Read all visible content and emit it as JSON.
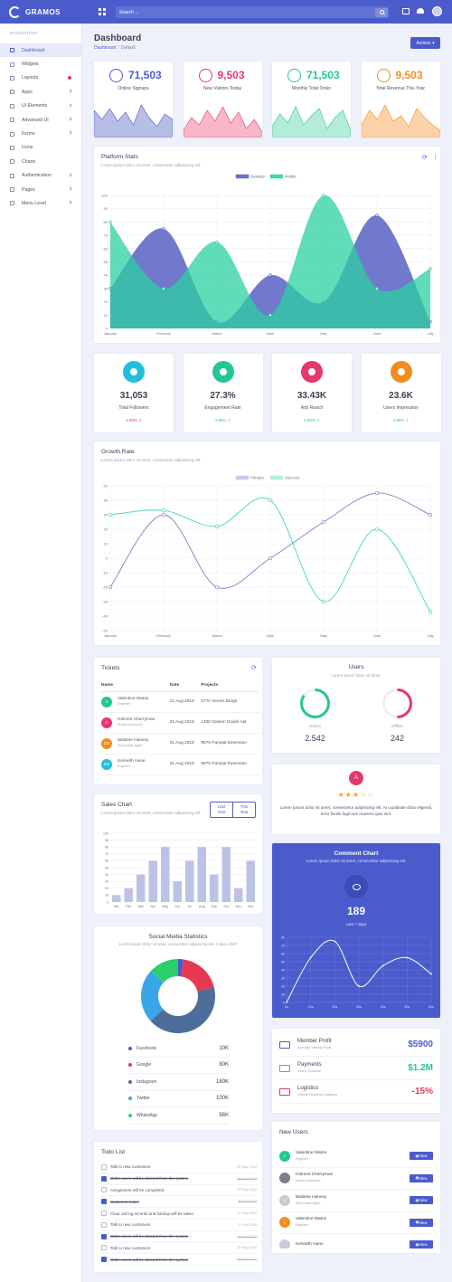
{
  "brand": "GRAMOS",
  "search": {
    "placeholder": "Search ..."
  },
  "sidebar": {
    "title": "NAVIGATION",
    "items": [
      {
        "label": "Dashboard",
        "active": true,
        "suffix": ""
      },
      {
        "label": "Widgets",
        "suffix": ""
      },
      {
        "label": "Layouts",
        "suffix": "dot"
      },
      {
        "label": "Apps",
        "suffix": "chevron"
      },
      {
        "label": "UI Elements",
        "suffix": "chevron"
      },
      {
        "label": "Advanced UI",
        "suffix": "chevron"
      },
      {
        "label": "Forms",
        "suffix": "chevron"
      },
      {
        "label": "Icons",
        "suffix": ""
      },
      {
        "label": "Charts",
        "suffix": ""
      },
      {
        "label": "Authentication",
        "suffix": "chevron"
      },
      {
        "label": "Pages",
        "suffix": "chevron"
      },
      {
        "label": "Menu Level",
        "suffix": "chevron"
      }
    ]
  },
  "page": {
    "title": "Dashboard",
    "crumb_root": "Dashboard",
    "crumb_sep": "/",
    "crumb_current": "Default",
    "actions_label": "Actions ▾"
  },
  "stats": [
    {
      "value": "71,503",
      "label": "Online Signups",
      "color": "#4a5ccb",
      "fill": "#b6bde6",
      "spark": [
        30,
        20,
        32,
        18,
        28,
        14,
        36,
        22,
        12,
        26,
        20
      ]
    },
    {
      "value": "9,503",
      "label": "New Visitors Today",
      "color": "#e5396b",
      "fill": "#f8b7c8",
      "spark": [
        8,
        22,
        14,
        30,
        18,
        34,
        16,
        28,
        10,
        20,
        6
      ]
    },
    {
      "value": "71,503",
      "label": "Monthly Total Order",
      "color": "#23c795",
      "fill": "#b3ecd9",
      "spark": [
        12,
        26,
        16,
        34,
        14,
        24,
        32,
        10,
        22,
        30,
        8
      ]
    },
    {
      "value": "9,503",
      "label": "Total Revenue This Year",
      "color": "#f38c1e",
      "fill": "#fcd3a8",
      "spark": [
        14,
        30,
        20,
        36,
        18,
        24,
        12,
        32,
        22,
        14,
        8
      ]
    }
  ],
  "platform": {
    "title": "Platform Stats",
    "subtitle": "Lorem ipsum dolor sit amet, consectetur adipisicing elit."
  },
  "kpis": [
    {
      "value": "31,053",
      "label": "Total Followers",
      "change": "4.98% ⇩",
      "color": "#1fc0db",
      "change_color": "#e5394f"
    },
    {
      "value": "27.3%",
      "label": "Engagement Rate",
      "change": "4.98% ⇧",
      "color": "#23c795",
      "change_color": "#23c795"
    },
    {
      "value": "33.43K",
      "label": "Ads Reach",
      "change": "4.98% ⇧",
      "color": "#e5396b",
      "change_color": "#23c795"
    },
    {
      "value": "23.6K",
      "label": "Users Impression",
      "change": "4.98% ⇧",
      "color": "#f38c1e",
      "change_color": "#23c795"
    }
  ],
  "growth": {
    "title": "Growth Rate",
    "subtitle": "Lorem ipsum dolor sit amet, consectetur adipisicing elit."
  },
  "tickets": {
    "title": "Tickets",
    "headers": [
      "Name",
      "Date",
      "Projects"
    ],
    "rows": [
      {
        "initials": "V",
        "color": "#23c795",
        "name": "Valentine Maton",
        "role": "Engineer",
        "date": "31 Aug 2018",
        "project": "6770 Verner Burgs"
      },
      {
        "initials": "C",
        "color": "#e5396b",
        "name": "Holmes Cherryman",
        "role": "Human resources",
        "date": "31 Aug 2018",
        "project": "1300 Gideon Divide Apt"
      },
      {
        "initials": "ZM",
        "color": "#f38c1e",
        "name": "Malanie Hanvey",
        "role": "Real estate agent",
        "date": "31 Aug 2018",
        "project": "9576 Pampal Extension"
      },
      {
        "initials": "KH",
        "color": "#1fc0db",
        "name": "Kenneth Hune",
        "role": "Engineer",
        "date": "31 Aug 2018",
        "project": "9576 Pampal Extension"
      }
    ]
  },
  "users": {
    "title": "Users",
    "subtitle": "Lorem ipsum dolor sit amet.",
    "online_label": "Online",
    "online_value": "2.542",
    "offline_label": "Offline",
    "offline_value": "242",
    "online_pct": 0.85,
    "offline_pct": 0.5
  },
  "review": {
    "initial": "A",
    "rating": 3,
    "stars": "★★★☆☆",
    "text": "Lorem ipsum dolor sit amet, consectetur adipisicing elit. At cupiditate dicta eligendi, error facilis fugit iure maiores quis sint."
  },
  "sales": {
    "title": "Sales Chart",
    "subtitle": "Lorem ipsum dolor sit amet, consectetur adipisicing elit.",
    "btn_last": "Last Year",
    "btn_this": "This Year"
  },
  "comment": {
    "title": "Comment Chart",
    "subtitle": "Lorem ipsum dolor sit amet, consectetur adipisicing elit.",
    "value": "189",
    "caption": "Last 7 days"
  },
  "social": {
    "title": "Social Media Statistics",
    "subtitle": "Lorem ipsum dolor sit amet, consectetur adipisicing elit. Culpa, nihil?",
    "items": [
      {
        "name": "Facebook",
        "value": "10K",
        "color": "#4a5ccb"
      },
      {
        "name": "Google",
        "value": "80K",
        "color": "#e5394f"
      },
      {
        "name": "Instagram",
        "value": "180K",
        "color": "#4d6d9a"
      },
      {
        "name": "Twitter",
        "value": "100K",
        "color": "#3aa6ea"
      },
      {
        "name": "WhatsApp",
        "value": "56K",
        "color": "#2bd06b"
      }
    ]
  },
  "profit": [
    {
      "title": "Member Profit",
      "sub": "Average Weekly Profit",
      "value": "$5900",
      "color": "#4a5ccb"
    },
    {
      "title": "Payments",
      "sub": "Yearly Expense",
      "value": "$1.2M",
      "color": "#23c795"
    },
    {
      "title": "Logistics",
      "sub": "Overall Regional Logistics",
      "value": "-15%",
      "color": "#e5394f"
    }
  ],
  "todo": {
    "title": "Todo List",
    "items": [
      {
        "text": "Talk to new customers",
        "date": "22 May 2018",
        "done": false
      },
      {
        "text": "Older users will be deleted from the system",
        "date": "20 April 2018",
        "done": true
      },
      {
        "text": "Assignment will be completed",
        "date": "13 May 2018",
        "done": false
      },
      {
        "text": "Customer notes",
        "date": "30 Jan 2018",
        "done": true
      },
      {
        "text": "Clear old log records and backup will be taken",
        "date": "13 May 2018",
        "done": false
      },
      {
        "text": "Talk to new customers",
        "date": "27 Feb 2018",
        "done": false
      },
      {
        "text": "Older users will be deleted from the system",
        "date": "14 May 2018",
        "done": true
      },
      {
        "text": "Talk to new customers",
        "date": "22 May 2018",
        "done": false
      },
      {
        "text": "Older users will be deleted from the system",
        "date": "20 April 2018",
        "done": true
      }
    ]
  },
  "new_users": {
    "title": "New Users",
    "view_label": "View",
    "items": [
      {
        "initials": "V",
        "color": "#23c795",
        "name": "Valentine Maton",
        "role": "Engineer"
      },
      {
        "initials": "",
        "color": "#7a7f8c",
        "name": "Holmes Cherryman",
        "role": "Human resources"
      },
      {
        "initials": "M",
        "color": "#c7cbd8",
        "name": "Malanie Hanvey",
        "role": "Real estate agent"
      },
      {
        "initials": "V",
        "color": "#f38c1e",
        "name": "Valentine Maton",
        "role": "Engineer"
      },
      {
        "initials": "",
        "color": "#c7cbd8",
        "name": "Kenneth Hune",
        "role": ""
      }
    ]
  },
  "chart_data": [
    {
      "type": "area",
      "x": [
        "January",
        "February",
        "March",
        "April",
        "May",
        "June",
        "July"
      ],
      "ylim": [
        0,
        100
      ],
      "yticks": [
        0,
        10,
        20,
        30,
        40,
        50,
        60,
        70,
        80,
        90,
        100
      ],
      "legend": "top",
      "series": [
        {
          "name": "Desktop",
          "color": "#5762c2",
          "values": [
            30,
            75,
            5,
            40,
            20,
            85,
            5
          ]
        },
        {
          "name": "Mobile",
          "color": "#2bd0a0",
          "values": [
            80,
            30,
            65,
            10,
            100,
            30,
            45
          ]
        }
      ]
    },
    {
      "type": "line",
      "x": [
        "January",
        "February",
        "March",
        "April",
        "May",
        "June",
        "July"
      ],
      "ylim": [
        -50,
        50
      ],
      "yticks": [
        50,
        40,
        30,
        20,
        10,
        0,
        -10,
        -20,
        -30,
        -40,
        -50
      ],
      "legend": "top",
      "series": [
        {
          "name": "Primary",
          "color": "#7c84c6",
          "values": [
            -20,
            30,
            -20,
            0,
            25,
            45,
            30
          ]
        },
        {
          "name": "Success",
          "color": "#3fd8b0",
          "values": [
            30,
            33,
            22,
            40,
            -30,
            20,
            -37
          ]
        }
      ]
    },
    {
      "type": "bar",
      "categories": [
        "Jan",
        "Feb",
        "Mar",
        "Apr",
        "May",
        "Jun",
        "Jul",
        "Aug",
        "Sep",
        "Oct",
        "Nov",
        "Dec"
      ],
      "ylim": [
        0,
        100
      ],
      "yticks": [
        0,
        10,
        20,
        30,
        40,
        50,
        60,
        70,
        80,
        90,
        100
      ],
      "values": [
        10,
        20,
        40,
        60,
        80,
        30,
        60,
        80,
        40,
        80,
        20,
        60
      ],
      "color": "#bcc1e6"
    },
    {
      "type": "line",
      "x": [
        "0s",
        "10s",
        "20s",
        "30s",
        "40s",
        "50s",
        "60s"
      ],
      "ylim": [
        0,
        80
      ],
      "yticks": [
        0,
        10,
        20,
        30,
        40,
        50,
        60,
        70,
        80
      ],
      "values": [
        0,
        55,
        75,
        20,
        45,
        55,
        35
      ],
      "color": "#ffffff"
    },
    {
      "type": "pie",
      "donut": true,
      "series": [
        {
          "name": "Facebook",
          "value": 10
        },
        {
          "name": "Google",
          "value": 80
        },
        {
          "name": "Instagram",
          "value": 180
        },
        {
          "name": "Twitter",
          "value": 100
        },
        {
          "name": "WhatsApp",
          "value": 56
        }
      ]
    }
  ]
}
